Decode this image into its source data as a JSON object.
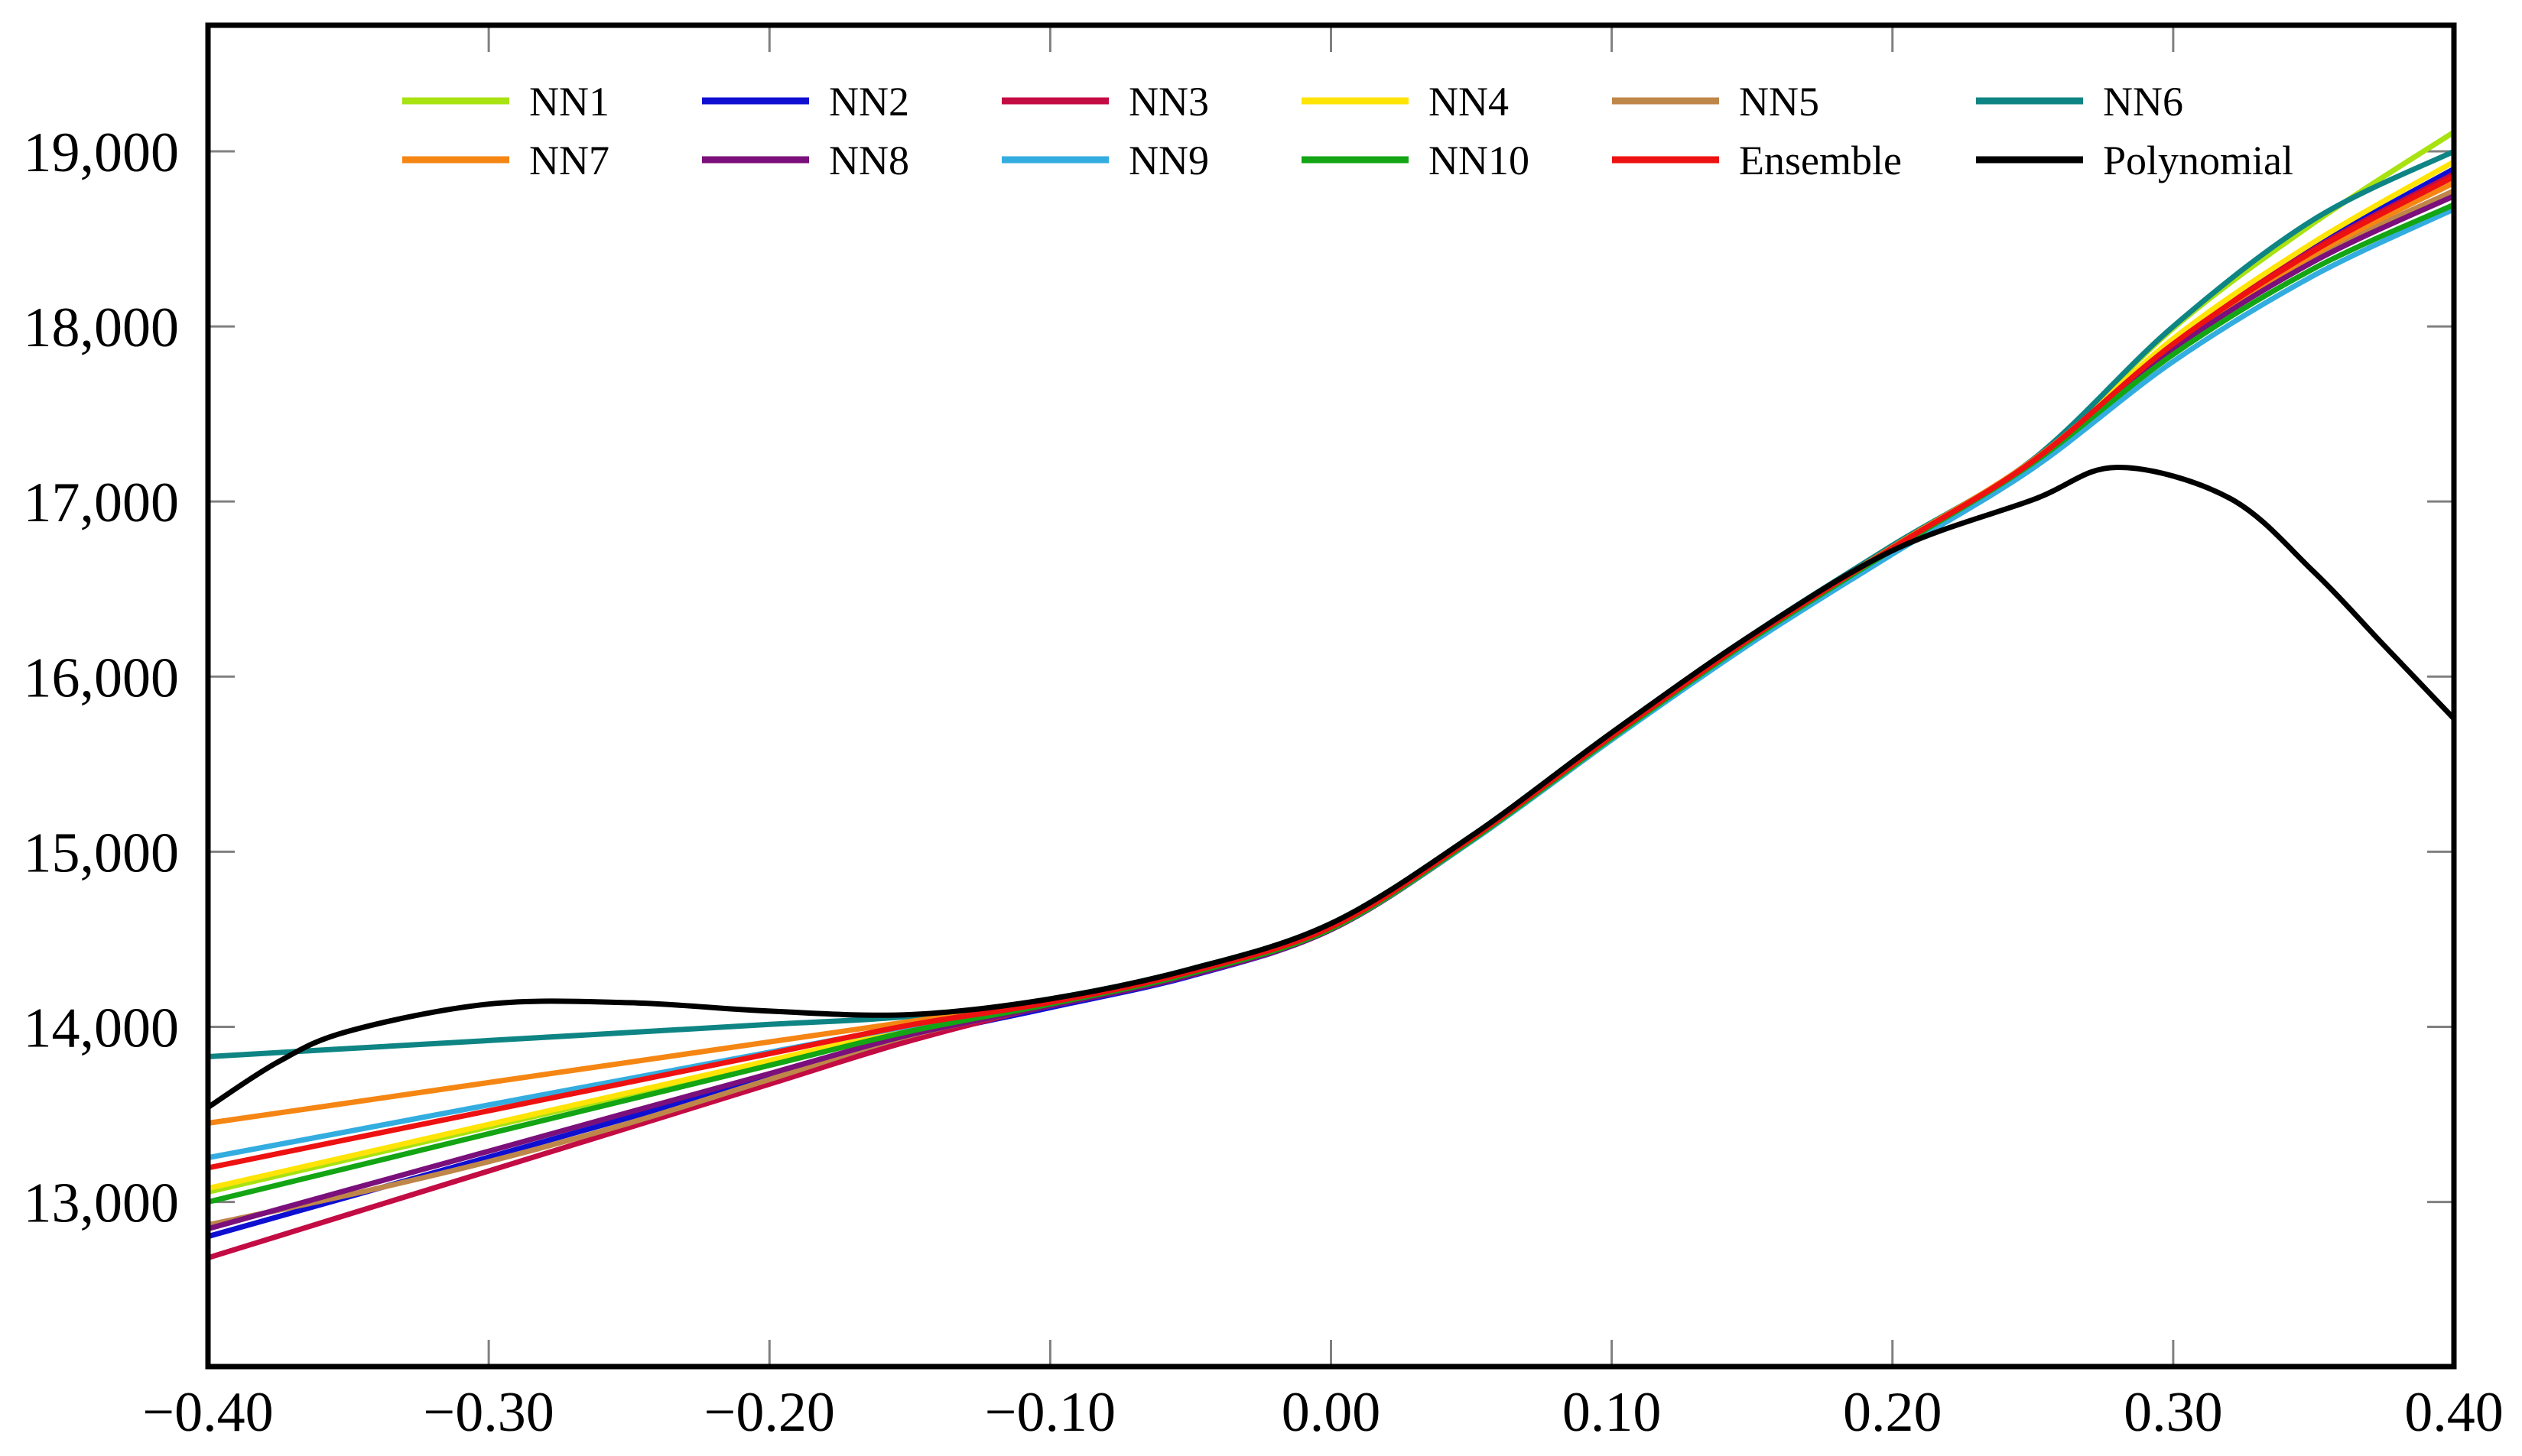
{
  "chart_data": {
    "type": "line",
    "title": "",
    "xlabel": "",
    "ylabel": "",
    "xlim": [
      -0.4,
      0.4
    ],
    "ylim": [
      12060,
      19720
    ],
    "grid": false,
    "legend_position": "top inside, two rows of six",
    "x_ticks": [
      {
        "value": -0.4,
        "label": "−0.40"
      },
      {
        "value": -0.3,
        "label": "−0.30"
      },
      {
        "value": -0.2,
        "label": "−0.20"
      },
      {
        "value": -0.1,
        "label": "−0.10"
      },
      {
        "value": 0.0,
        "label": "0.00"
      },
      {
        "value": 0.1,
        "label": "0.10"
      },
      {
        "value": 0.2,
        "label": "0.20"
      },
      {
        "value": 0.3,
        "label": "0.30"
      },
      {
        "value": 0.4,
        "label": "0.40"
      }
    ],
    "y_ticks": [
      {
        "value": 13000,
        "label": "13,000"
      },
      {
        "value": 14000,
        "label": "14,000"
      },
      {
        "value": 15000,
        "label": "15,000"
      },
      {
        "value": 16000,
        "label": "16,000"
      },
      {
        "value": 17000,
        "label": "17,000"
      },
      {
        "value": 18000,
        "label": "18,000"
      },
      {
        "value": 19000,
        "label": "19,000"
      }
    ],
    "series": [
      {
        "name": "NN1",
        "color": "#a8e210",
        "x": [
          -0.4,
          -0.35,
          -0.3,
          -0.25,
          -0.2,
          -0.15,
          -0.1,
          -0.05,
          0.0,
          0.05,
          0.1,
          0.15,
          0.2,
          0.25,
          0.3,
          0.35,
          0.4
        ],
        "y": [
          13057,
          13243,
          13428,
          13614,
          13799,
          13985,
          14130,
          14315,
          14570,
          15070,
          15660,
          16225,
          16735,
          17230,
          17990,
          18590,
          19110
        ]
      },
      {
        "name": "NN2",
        "color": "#0f0fd2",
        "x": [
          -0.4,
          -0.35,
          -0.3,
          -0.25,
          -0.2,
          -0.15,
          -0.1,
          -0.05,
          0.0,
          0.05,
          0.1,
          0.15,
          0.2,
          0.25,
          0.3,
          0.35,
          0.4
        ],
        "y": [
          12803,
          13029,
          13256,
          13482,
          13709,
          13935,
          14110,
          14290,
          14555,
          15060,
          15640,
          16205,
          16715,
          17210,
          17910,
          18450,
          18900
        ]
      },
      {
        "name": "NN3",
        "color": "#c30b44",
        "x": [
          -0.4,
          -0.35,
          -0.3,
          -0.25,
          -0.2,
          -0.15,
          -0.1,
          -0.05,
          0.0,
          0.05,
          0.1,
          0.15,
          0.2,
          0.25,
          0.3,
          0.35,
          0.4
        ],
        "y": [
          12681,
          12929,
          13177,
          13425,
          13673,
          13920,
          14125,
          14300,
          14560,
          15065,
          15645,
          16210,
          16720,
          17215,
          17905,
          18440,
          18870
        ]
      },
      {
        "name": "NN4",
        "color": "#ffe405",
        "x": [
          -0.4,
          -0.35,
          -0.3,
          -0.25,
          -0.2,
          -0.15,
          -0.1,
          -0.05,
          0.0,
          0.05,
          0.1,
          0.15,
          0.2,
          0.25,
          0.3,
          0.35,
          0.4
        ],
        "y": [
          13078,
          13260,
          13443,
          13625,
          13808,
          13990,
          14135,
          14310,
          14565,
          15070,
          15655,
          16220,
          16730,
          17225,
          17930,
          18480,
          18940
        ]
      },
      {
        "name": "NN5",
        "color": "#bf8649",
        "x": [
          -0.4,
          -0.35,
          -0.3,
          -0.25,
          -0.2,
          -0.15,
          -0.1,
          -0.05,
          0.0,
          0.05,
          0.1,
          0.15,
          0.2,
          0.25,
          0.3,
          0.35,
          0.4
        ],
        "y": [
          12869,
          13040,
          13230,
          13450,
          13700,
          13950,
          14120,
          14295,
          14555,
          15060,
          15640,
          16200,
          16715,
          17210,
          17880,
          18390,
          18775
        ]
      },
      {
        "name": "NN6",
        "color": "#0e8584",
        "x": [
          -0.4,
          -0.35,
          -0.3,
          -0.25,
          -0.2,
          -0.15,
          -0.1,
          -0.05,
          0.0,
          0.05,
          0.1,
          0.15,
          0.2,
          0.25,
          0.3,
          0.35,
          0.4
        ],
        "y": [
          13830,
          13876,
          13922,
          13968,
          14014,
          14060,
          14160,
          14330,
          14590,
          15090,
          15680,
          16240,
          16750,
          17240,
          18000,
          18610,
          19000
        ]
      },
      {
        "name": "NN7",
        "color": "#f58613",
        "x": [
          -0.4,
          -0.35,
          -0.3,
          -0.25,
          -0.2,
          -0.15,
          -0.1,
          -0.05,
          0.0,
          0.05,
          0.1,
          0.15,
          0.2,
          0.25,
          0.3,
          0.35,
          0.4
        ],
        "y": [
          13450,
          13566,
          13682,
          13798,
          13914,
          14030,
          14150,
          14325,
          14580,
          15080,
          15665,
          16230,
          16740,
          17235,
          17890,
          18410,
          18820
        ]
      },
      {
        "name": "NN8",
        "color": "#7b0f7b",
        "x": [
          -0.4,
          -0.35,
          -0.3,
          -0.25,
          -0.2,
          -0.15,
          -0.1,
          -0.05,
          0.0,
          0.05,
          0.1,
          0.15,
          0.2,
          0.25,
          0.3,
          0.35,
          0.4
        ],
        "y": [
          12847,
          13069,
          13290,
          13512,
          13733,
          13955,
          14120,
          14295,
          14555,
          15060,
          15645,
          16210,
          16720,
          17215,
          17870,
          18370,
          18745
        ]
      },
      {
        "name": "NN9",
        "color": "#33ade0",
        "x": [
          -0.4,
          -0.35,
          -0.3,
          -0.25,
          -0.2,
          -0.15,
          -0.1,
          -0.05,
          0.0,
          0.05,
          0.1,
          0.15,
          0.2,
          0.25,
          0.3,
          0.35,
          0.4
        ],
        "y": [
          13253,
          13403,
          13554,
          13704,
          13855,
          14005,
          14140,
          14310,
          14560,
          15060,
          15640,
          16195,
          16700,
          17190,
          17800,
          18290,
          18670
        ]
      },
      {
        "name": "NN10",
        "color": "#13a513",
        "x": [
          -0.4,
          -0.35,
          -0.3,
          -0.25,
          -0.2,
          -0.15,
          -0.1,
          -0.05,
          0.0,
          0.05,
          0.1,
          0.15,
          0.2,
          0.25,
          0.3,
          0.35,
          0.4
        ],
        "y": [
          13000,
          13195,
          13390,
          13585,
          13780,
          13975,
          14130,
          14305,
          14560,
          15065,
          15650,
          16215,
          16725,
          17220,
          17840,
          18330,
          18695
        ]
      },
      {
        "name": "Ensemble",
        "color": "#ee1111",
        "x": [
          -0.4,
          -0.35,
          -0.3,
          -0.25,
          -0.2,
          -0.15,
          -0.1,
          -0.05,
          0.0,
          0.05,
          0.1,
          0.15,
          0.2,
          0.25,
          0.3,
          0.35,
          0.4
        ],
        "y": [
          13195,
          13358,
          13521,
          13684,
          13847,
          14010,
          14140,
          14315,
          14570,
          15075,
          15660,
          16225,
          16735,
          17230,
          17900,
          18430,
          18855
        ]
      },
      {
        "name": "Polynomial",
        "color": "#000000",
        "x": [
          -0.4,
          -0.375,
          -0.35,
          -0.3,
          -0.25,
          -0.2,
          -0.15,
          -0.1,
          -0.05,
          0.0,
          0.05,
          0.1,
          0.15,
          0.2,
          0.25,
          0.28,
          0.32,
          0.35,
          0.375,
          0.4
        ],
        "y": [
          13540,
          13800,
          13975,
          14130,
          14138,
          14090,
          14070,
          14160,
          14330,
          14590,
          15090,
          15680,
          16240,
          16720,
          17010,
          17195,
          17020,
          16600,
          16180,
          15760
        ]
      }
    ]
  },
  "legend": {
    "rows": 2,
    "columns": 6,
    "entries": [
      "NN1",
      "NN2",
      "NN3",
      "NN4",
      "NN5",
      "NN6",
      "NN7",
      "NN8",
      "NN9",
      "NN10",
      "Ensemble",
      "Polynomial"
    ]
  },
  "colors": {
    "background": "#ffffff",
    "frame": "#000000",
    "tick": "#808080",
    "text": "#000000"
  }
}
